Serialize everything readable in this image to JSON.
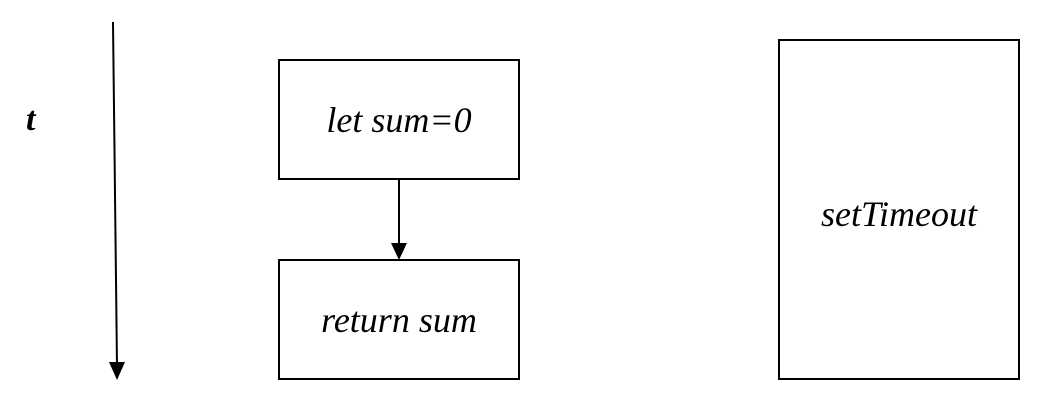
{
  "axis": {
    "label": "t"
  },
  "boxes": {
    "init": "let sum=0",
    "ret": "return sum",
    "timer": "setTimeout"
  }
}
